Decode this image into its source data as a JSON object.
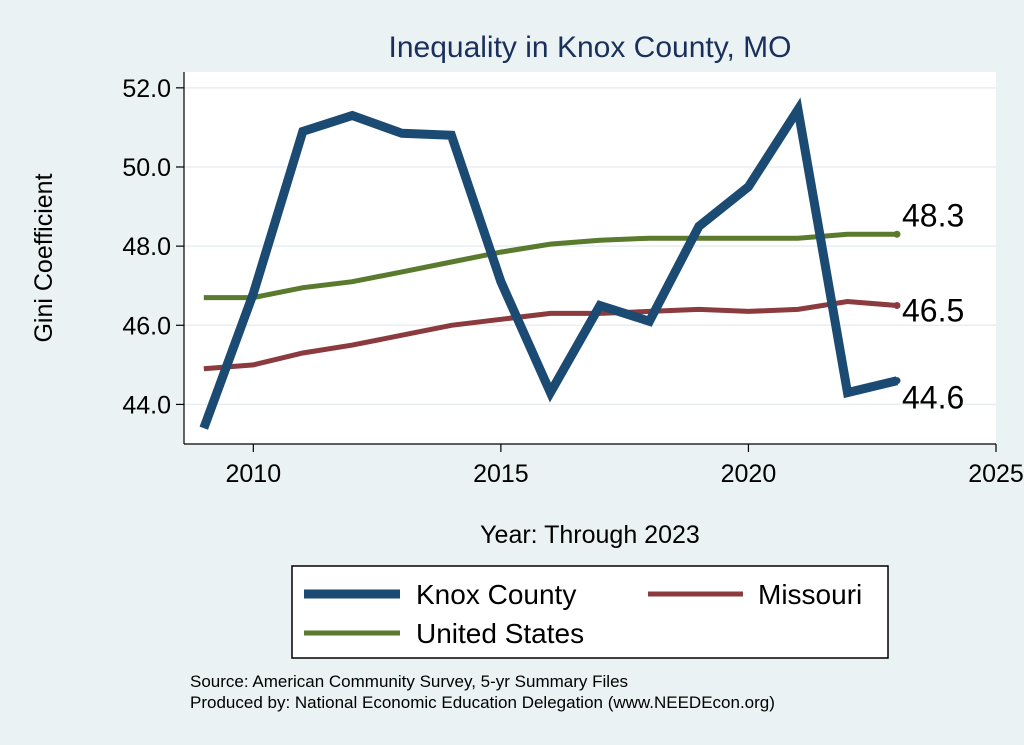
{
  "chart_data": {
    "type": "line",
    "title": "Inequality in Knox County, MO",
    "xlabel": "Year: Through 2023",
    "ylabel": "Gini Coefficient",
    "xlim": [
      2008.6,
      2025
    ],
    "ylim": [
      43.0,
      52.4
    ],
    "x_ticks": [
      "2010",
      "2015",
      "2020",
      "2025"
    ],
    "y_ticks": [
      "44.0",
      "46.0",
      "48.0",
      "50.0",
      "52.0"
    ],
    "grid": true,
    "x": [
      2009,
      2010,
      2011,
      2012,
      2013,
      2014,
      2015,
      2016,
      2017,
      2018,
      2019,
      2020,
      2021,
      2022,
      2023
    ],
    "series": [
      {
        "name": "Knox County",
        "color": "#1b4a72",
        "values": [
          43.4,
          46.8,
          50.9,
          51.3,
          50.85,
          50.8,
          47.1,
          44.3,
          46.5,
          46.1,
          48.5,
          49.5,
          51.45,
          44.3,
          44.6
        ],
        "end_label": "44.6"
      },
      {
        "name": "Missouri",
        "color": "#8b3a3e",
        "values": [
          44.9,
          45.0,
          45.3,
          45.5,
          45.75,
          46.0,
          46.15,
          46.3,
          46.3,
          46.35,
          46.4,
          46.35,
          46.4,
          46.6,
          46.5
        ],
        "end_label": "46.5"
      },
      {
        "name": "United States",
        "color": "#5a7a2d",
        "values": [
          46.7,
          46.7,
          46.95,
          47.1,
          47.35,
          47.6,
          47.85,
          48.05,
          48.15,
          48.2,
          48.2,
          48.2,
          48.2,
          48.3,
          48.3
        ],
        "end_label": "48.3"
      }
    ],
    "legend_position": "bottom"
  },
  "source": {
    "line1": "Source: American Community Survey, 5-yr Summary Files",
    "line2": "Produced by: National Economic Education Delegation (www.NEEDEcon.org)"
  }
}
